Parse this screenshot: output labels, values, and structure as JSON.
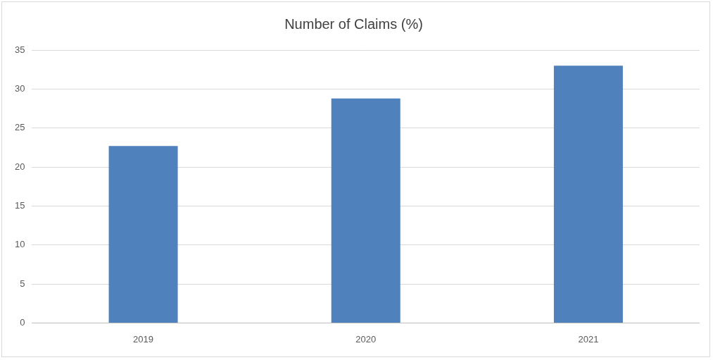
{
  "chart_data": {
    "type": "bar",
    "title": "Number of Claims (%)",
    "categories": [
      "2019",
      "2020",
      "2021"
    ],
    "values": [
      22.7,
      28.8,
      33.0
    ],
    "color": "#4f81bd",
    "ylim": [
      0,
      35
    ],
    "yticks": [
      0,
      5,
      10,
      15,
      20,
      25,
      30,
      35
    ],
    "grid": true
  }
}
